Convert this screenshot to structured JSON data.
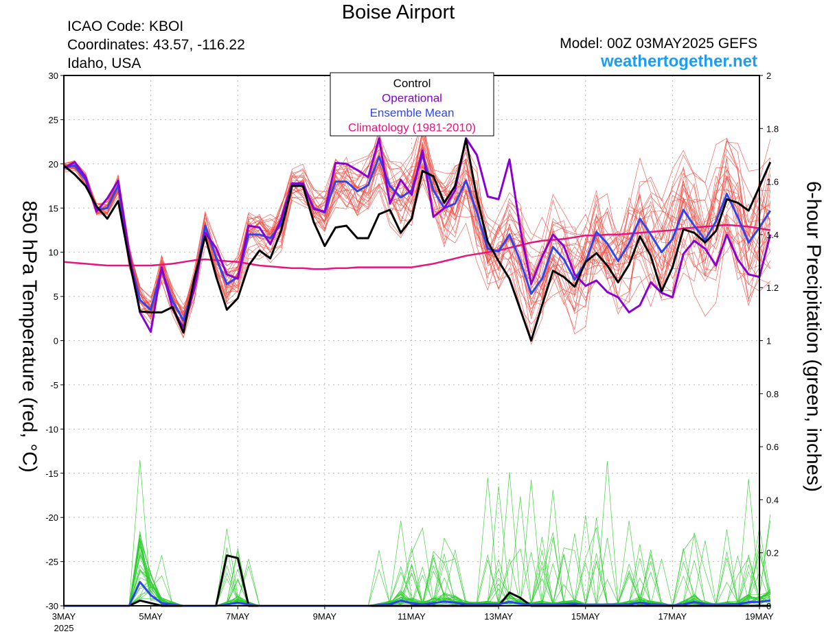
{
  "header": {
    "title": "Boise Airport",
    "icao": "ICAO Code: KBOI",
    "coords": "Coordinates: 43.57, -116.22",
    "region": "Idaho, USA",
    "model": "Model: 00Z 03MAY2025 GEFS",
    "site": "weathertogether.net"
  },
  "axes": {
    "left_label": "850 hPa Temperature (red, °C)",
    "right_label": "6-hour Precipitation (green, inches)",
    "left_ticks": [
      30,
      25,
      20,
      15,
      10,
      5,
      0,
      -5,
      -10,
      -15,
      -20,
      -25,
      -30
    ],
    "right_ticks": [
      "2",
      "1.8",
      "1.6",
      "1.4",
      "1.2",
      "1",
      "0.8",
      "0.6",
      "0.4",
      "0.2",
      "0"
    ],
    "x_ticks": [
      {
        "day": 3,
        "label": "3MAY",
        "sub": "2025"
      },
      {
        "day": 5,
        "label": "5MAY"
      },
      {
        "day": 7,
        "label": "7MAY"
      },
      {
        "day": 9,
        "label": "9MAY"
      },
      {
        "day": 11,
        "label": "11MAY"
      },
      {
        "day": 13,
        "label": "13MAY"
      },
      {
        "day": 15,
        "label": "15MAY"
      },
      {
        "day": 17,
        "label": "17MAY"
      },
      {
        "day": 19,
        "label": "19MAY"
      }
    ]
  },
  "legend": {
    "items": [
      {
        "label": "Control",
        "color": "#000000"
      },
      {
        "label": "Operational",
        "color": "#8a00d4"
      },
      {
        "label": "Ensemble Mean",
        "color": "#2d44ee"
      },
      {
        "label": "Climatology (1981-2010)",
        "color": "#e8137c"
      }
    ]
  },
  "colors": {
    "members_temp": "#f04a40",
    "members_precip": "#2ecc2e",
    "control": "#000000",
    "operational": "#8a00d4",
    "mean": "#2d44ee",
    "climatology": "#e8137c"
  },
  "chart_data": {
    "type": "line",
    "x_unit": "days since 00Z 03MAY2025 (6-hourly steps)",
    "temp_ylim": [
      -30,
      30
    ],
    "precip_ylim": [
      0,
      2
    ],
    "grid": true,
    "series": [
      {
        "name": "Control",
        "axis": "temp",
        "color": "#000000",
        "values": [
          19.8,
          18.8,
          17.5,
          15.2,
          13.8,
          15.8,
          9.2,
          3.3,
          3.2,
          3.2,
          3.8,
          0.9,
          7.0,
          11.8,
          7.3,
          3.5,
          4.8,
          8.5,
          10.2,
          9.3,
          12.5,
          17.5,
          17.5,
          13.4,
          10.7,
          12.8,
          13.0,
          11.6,
          11.6,
          14.3,
          14.8,
          12.2,
          13.8,
          19.2,
          18.6,
          15.6,
          17.5,
          22.8,
          16.2,
          11.2,
          9.0,
          7.0,
          3.5,
          0.0,
          4.0,
          7.9,
          7.2,
          6.1,
          8.9,
          9.9,
          8.5,
          6.6,
          8.6,
          11.8,
          9.6,
          5.6,
          8.3,
          12.6,
          12.2,
          11.1,
          12.4,
          16.0,
          15.6,
          14.7,
          17.4,
          20.2
        ]
      },
      {
        "name": "Operational",
        "axis": "temp",
        "color": "#8a00d4",
        "values": [
          19.5,
          20.2,
          18.5,
          14.6,
          16.1,
          18.1,
          10.0,
          3.2,
          1.0,
          8.3,
          3.6,
          1.5,
          5.8,
          12.2,
          10.5,
          7.5,
          7.0,
          13.0,
          12.8,
          10.9,
          13.8,
          17.8,
          17.8,
          14.9,
          14.6,
          20.1,
          20.0,
          19.3,
          18.5,
          22.9,
          15.5,
          18.2,
          16.5,
          21.5,
          14.0,
          15.0,
          17.0,
          22.9,
          21.0,
          16.3,
          16.0,
          20.5,
          12.6,
          6.4,
          9.5,
          12.0,
          10.7,
          7.5,
          6.2,
          6.8,
          5.5,
          4.9,
          3.2,
          4.0,
          6.6,
          5.4,
          4.9,
          9.8,
          11.3,
          10.4,
          8.5,
          12.0,
          9.2,
          7.5,
          7.2,
          12.0
        ]
      },
      {
        "name": "Ensemble Mean",
        "axis": "temp",
        "color": "#2d44ee",
        "values": [
          19.6,
          19.8,
          18.2,
          14.8,
          15.0,
          17.6,
          9.6,
          4.6,
          3.5,
          8.0,
          4.5,
          2.3,
          6.2,
          13.0,
          9.4,
          6.4,
          7.2,
          12.0,
          12.0,
          11.6,
          13.2,
          17.7,
          17.6,
          15.0,
          14.5,
          18.0,
          18.0,
          16.9,
          17.6,
          20.8,
          17.5,
          16.2,
          17.0,
          21.0,
          17.0,
          15.0,
          15.5,
          18.1,
          14.5,
          10.4,
          10.1,
          12.0,
          9.0,
          5.3,
          7.0,
          10.6,
          9.2,
          6.9,
          8.9,
          12.3,
          11.0,
          9.0,
          11.0,
          13.8,
          12.0,
          10.0,
          11.5,
          14.8,
          13.0,
          11.4,
          13.5,
          16.6,
          14.0,
          11.1,
          12.8,
          14.7
        ]
      },
      {
        "name": "Climatology (1981-2010)",
        "axis": "temp",
        "color": "#e8137c",
        "values": [
          8.9,
          8.8,
          8.7,
          8.6,
          8.5,
          8.5,
          8.5,
          8.5,
          8.5,
          8.6,
          8.7,
          8.9,
          9.1,
          9.2,
          9.1,
          9.0,
          8.9,
          8.7,
          8.5,
          8.4,
          8.3,
          8.2,
          8.2,
          8.1,
          8.1,
          8.2,
          8.2,
          8.3,
          8.3,
          8.3,
          8.3,
          8.3,
          8.3,
          8.5,
          8.7,
          9.0,
          9.3,
          9.6,
          9.8,
          10.0,
          10.2,
          10.5,
          10.8,
          11.1,
          11.3,
          11.4,
          11.5,
          11.7,
          11.9,
          11.9,
          12.0,
          12.0,
          12.1,
          12.2,
          12.3,
          12.4,
          12.5,
          12.7,
          12.8,
          12.9,
          13.0,
          13.1,
          13.0,
          12.9,
          12.7,
          12.5
        ]
      },
      {
        "name": "Control Precip",
        "axis": "precip",
        "color": "#000000",
        "values": [
          0,
          0,
          0,
          0,
          0,
          0,
          0.0,
          0.02,
          0.01,
          0.0,
          0,
          0,
          0,
          0,
          0,
          0.19,
          0.18,
          0,
          0,
          0,
          0,
          0,
          0,
          0,
          0,
          0,
          0,
          0,
          0,
          0,
          0,
          0,
          0,
          0,
          0,
          0,
          0,
          0,
          0,
          0,
          0,
          0.05,
          0.03,
          0,
          0,
          0,
          0,
          0,
          0,
          0,
          0,
          0,
          0,
          0,
          0,
          0,
          0,
          0,
          0,
          0,
          0,
          0,
          0,
          0,
          0,
          0
        ]
      },
      {
        "name": "Ensemble Mean Precip",
        "axis": "precip",
        "color": "#2d44ee",
        "values": [
          0,
          0,
          0,
          0,
          0,
          0,
          0.0,
          0.09,
          0.04,
          0.01,
          0.005,
          0,
          0,
          0,
          0,
          0.005,
          0.012,
          0.005,
          0,
          0,
          0,
          0,
          0,
          0,
          0,
          0,
          0,
          0,
          0,
          0.003,
          0.006,
          0.02,
          0.01,
          0.005,
          0.01,
          0.016,
          0.012,
          0.006,
          0.005,
          0.006,
          0.005,
          0.015,
          0.008,
          0.004,
          0.006,
          0.004,
          0.006,
          0.008,
          0.003,
          0.003,
          0.003,
          0.004,
          0.006,
          0.012,
          0.006,
          0.004,
          0.002,
          0.006,
          0.014,
          0.006,
          0.003,
          0.005,
          0.006,
          0.014,
          0.015,
          0.02
        ]
      }
    ],
    "ensemble_members": {
      "temp_spread": [
        0.9,
        0.9,
        1.0,
        1.0,
        1.2,
        1.5,
        1.5,
        1.8,
        2.0,
        2.2,
        2.0,
        2.2,
        2.5,
        2.5,
        2.8,
        3.0,
        3.0,
        3.2,
        3.0,
        3.2,
        3.5,
        2.0,
        2.5,
        3.0,
        3.5,
        3.5,
        3.8,
        4.0,
        4.0,
        4.2,
        4.5,
        4.5,
        4.8,
        5.0,
        5.2,
        5.5,
        5.5,
        5.8,
        6.0,
        6.0,
        6.2,
        6.2,
        6.5,
        6.5,
        6.5,
        6.8,
        6.8,
        7.0,
        7.0,
        7.2,
        7.2,
        7.5,
        7.5,
        7.5,
        7.8,
        7.8,
        8.0,
        8.0,
        8.2,
        8.2,
        8.5,
        8.5,
        8.5,
        8.8,
        8.8,
        9.0
      ],
      "precip_peaks": [
        0.55,
        0.35,
        0.28,
        0.22,
        0.18,
        0.2,
        0.25,
        0.16,
        0.32,
        0.3,
        0.2,
        0.22
      ]
    }
  }
}
